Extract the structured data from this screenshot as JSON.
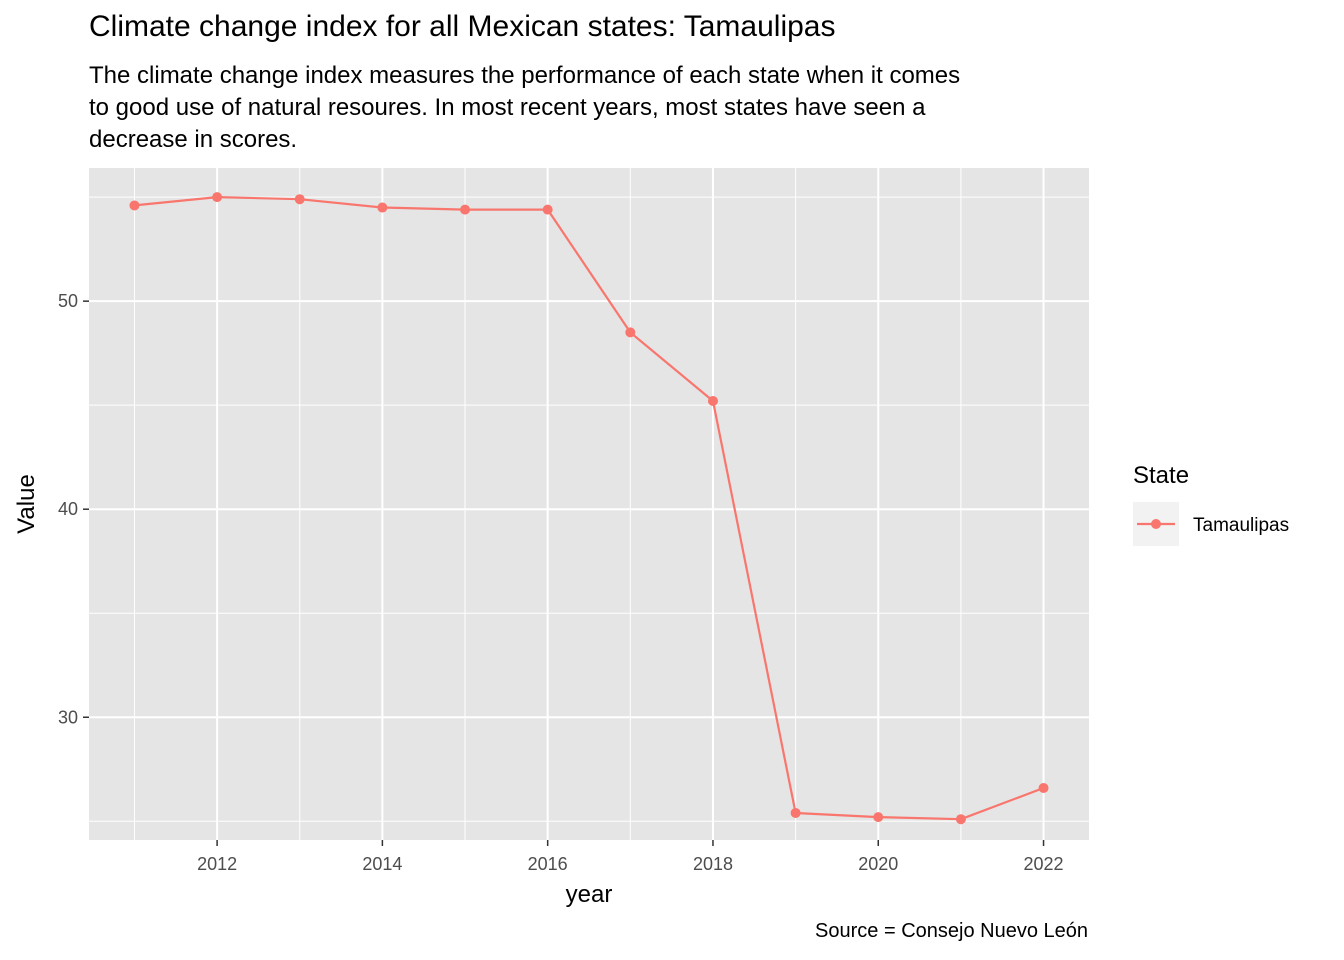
{
  "chart_data": {
    "type": "line",
    "title": "Climate change index for all Mexican states: Tamaulipas",
    "subtitle_lines": [
      "The climate change index measures the performance of each state when it comes",
      "to good use of natural resoures. In most recent years, most states have seen a",
      "decrease in scores."
    ],
    "caption": "Source = Consejo Nuevo León",
    "xlabel": "year",
    "ylabel": "Value",
    "x": [
      2011,
      2012,
      2013,
      2014,
      2015,
      2016,
      2017,
      2018,
      2019,
      2020,
      2021,
      2022
    ],
    "series": [
      {
        "name": "Tamaulipas",
        "color": "#F8766D",
        "values": [
          54.6,
          55.0,
          54.9,
          54.5,
          54.4,
          54.4,
          48.5,
          45.2,
          25.4,
          25.2,
          25.1,
          26.6
        ]
      }
    ],
    "xlim": [
      2010.45,
      2022.55
    ],
    "ylim": [
      24.1,
      56.4
    ],
    "x_ticks": [
      2012,
      2014,
      2016,
      2018,
      2020,
      2022
    ],
    "x_tick_labels": [
      "2012",
      "2014",
      "2016",
      "2018",
      "2020",
      "2022"
    ],
    "y_ticks": [
      30,
      40,
      50
    ],
    "y_tick_labels": [
      "30",
      "40",
      "50"
    ],
    "grid": true,
    "panel_background": "#E5E5E5",
    "legend": {
      "title": "State",
      "position": "right"
    }
  }
}
